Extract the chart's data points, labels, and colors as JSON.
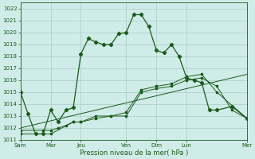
{
  "background_color": "#d0ece8",
  "grid_color": "#a8ccc8",
  "line_color": "#1a5c1a",
  "marker_color": "#1a5c1a",
  "xlabel": "Pression niveau de la mer( hPa )",
  "xlabel_color": "#1a5c1a",
  "ylim": [
    1011,
    1022.5
  ],
  "yticks": [
    1011,
    1012,
    1013,
    1014,
    1015,
    1016,
    1017,
    1018,
    1019,
    1020,
    1021,
    1022
  ],
  "day_labels": [
    "Sam",
    "Mar",
    "Jeu",
    "Ven",
    "Dim",
    "Lun",
    "Mer"
  ],
  "day_positions": [
    0,
    2,
    4,
    7,
    9,
    11,
    15
  ],
  "xlim": [
    0,
    15
  ],
  "series1_x": [
    0,
    0.5,
    1,
    1.5,
    2,
    2.5,
    3,
    3.5,
    4,
    4.5,
    5,
    5.5,
    6,
    6.5,
    7,
    7.5,
    8,
    8.5,
    9,
    9.5,
    10,
    10.5,
    11,
    11.5,
    12,
    12.5,
    13,
    14,
    15
  ],
  "series1_y": [
    1015.0,
    1013.2,
    1011.5,
    1011.5,
    1013.5,
    1012.5,
    1013.5,
    1013.7,
    1018.2,
    1019.5,
    1019.2,
    1019.0,
    1019.0,
    1019.9,
    1020.0,
    1021.5,
    1021.5,
    1020.5,
    1018.5,
    1018.3,
    1019.0,
    1018.0,
    1016.2,
    1016.0,
    1015.8,
    1013.5,
    1013.5,
    1013.8,
    1012.8
  ],
  "series2_x": [
    0,
    2,
    3.5,
    4,
    5,
    6,
    7,
    8,
    9,
    10,
    11,
    12,
    13,
    14,
    15
  ],
  "series2_y": [
    1011.5,
    1011.5,
    1012.5,
    1012.5,
    1013.0,
    1013.0,
    1013.0,
    1015.0,
    1015.3,
    1015.5,
    1016.0,
    1016.2,
    1015.5,
    1013.5,
    1012.8
  ],
  "series3_x": [
    0,
    1.5,
    2,
    2.5,
    3,
    3.5,
    4,
    5,
    6,
    7,
    8,
    9,
    10,
    11,
    12,
    13,
    15
  ],
  "series3_y": [
    1011.8,
    1011.8,
    1011.8,
    1012.0,
    1012.2,
    1012.5,
    1012.5,
    1012.8,
    1013.0,
    1013.3,
    1015.2,
    1015.5,
    1015.7,
    1016.3,
    1016.5,
    1015.0,
    1012.8
  ],
  "series4_x": [
    0,
    15
  ],
  "series4_y": [
    1012.0,
    1016.5
  ]
}
